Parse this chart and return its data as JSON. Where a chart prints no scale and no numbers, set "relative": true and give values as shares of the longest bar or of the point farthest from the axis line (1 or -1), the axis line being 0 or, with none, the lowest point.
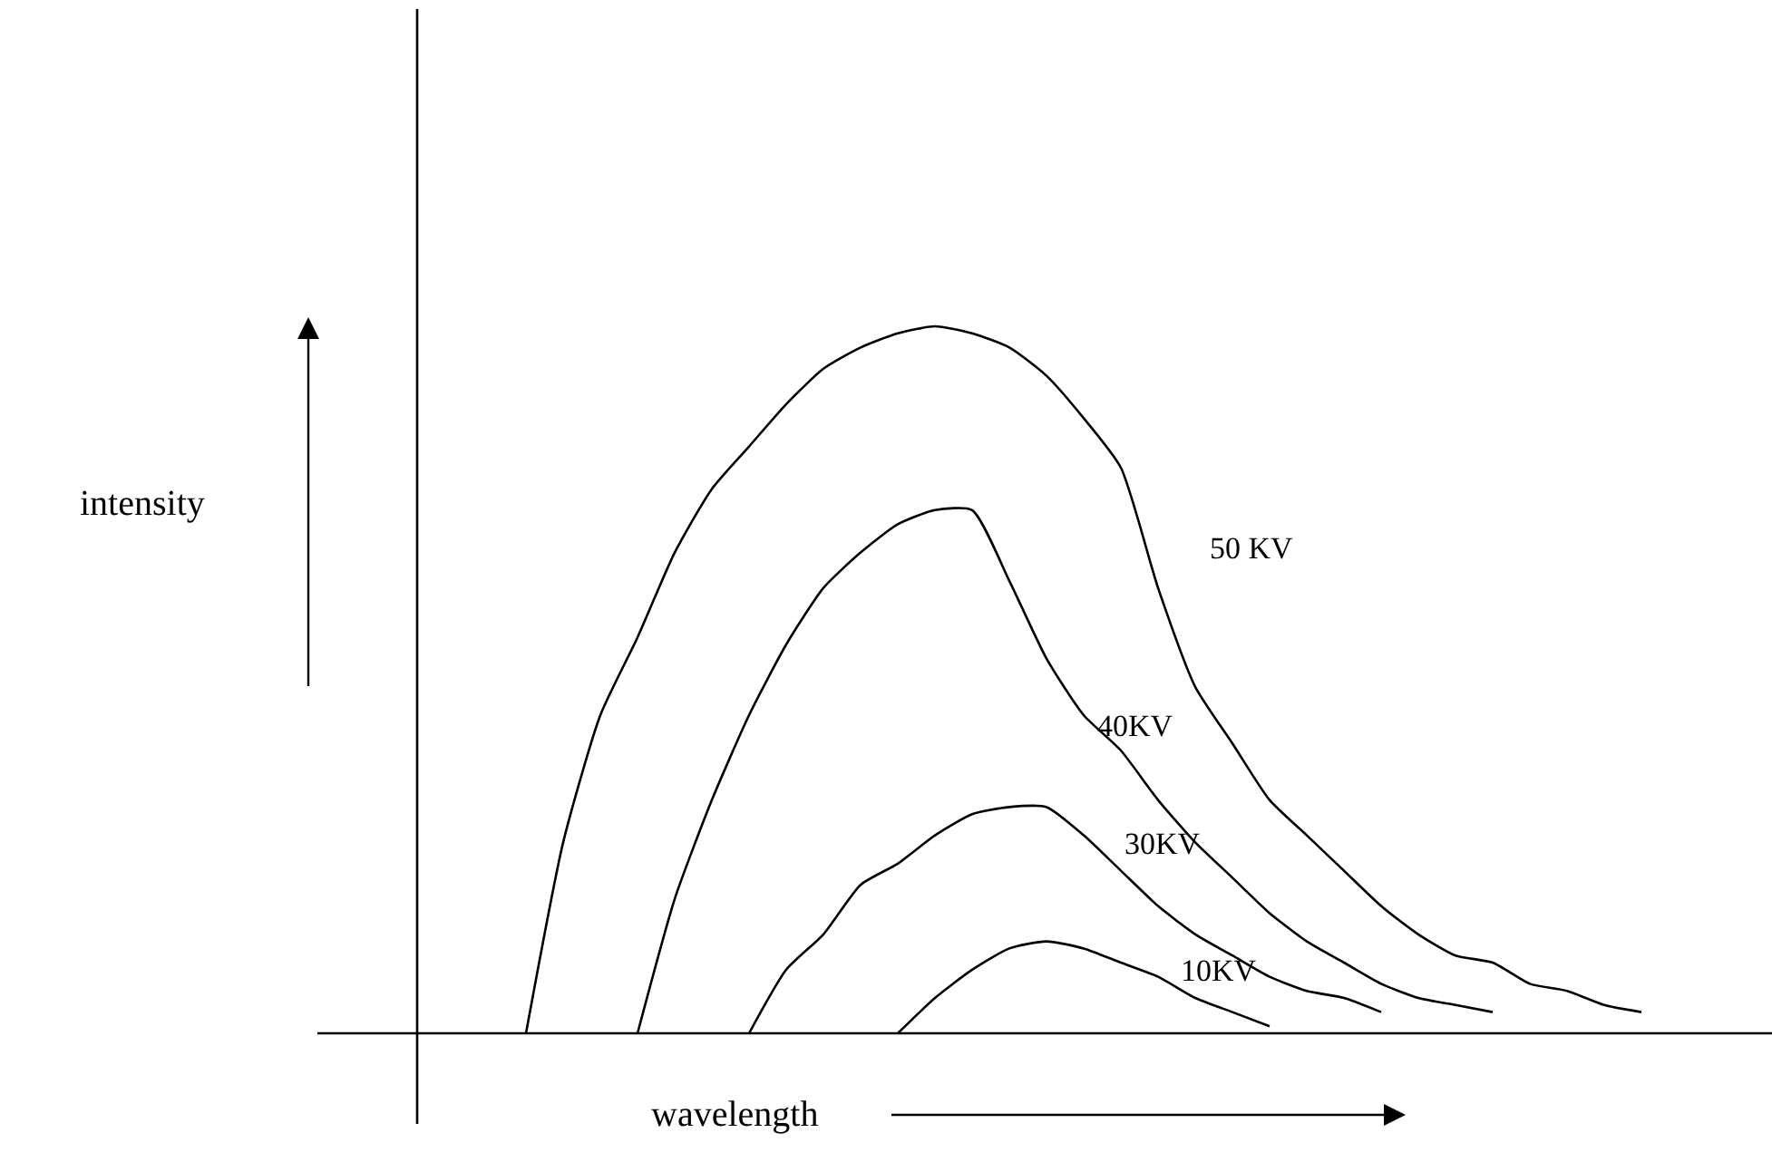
{
  "chart_data": {
    "type": "line",
    "relative": true,
    "xlabel": "wavelength",
    "annotations": [
      "intensity"
    ],
    "legend": false,
    "marker": "none",
    "line_style": "solid",
    "categories": [
      null,
      null,
      null,
      null,
      null,
      null,
      null,
      null,
      null,
      null,
      null,
      null,
      null,
      null,
      null,
      null,
      null,
      null,
      null,
      null,
      null,
      null,
      null,
      null,
      null,
      null,
      null,
      null,
      null,
      null,
      null
    ],
    "series": [
      {
        "name": "50 KV",
        "color": "#000000",
        "values": [
          0,
          0.27,
          0.45,
          0.56,
          0.68,
          0.77,
          0.83,
          0.89,
          0.94,
          0.97,
          0.99,
          1.0,
          0.99,
          0.97,
          0.93,
          0.87,
          0.8,
          0.63,
          0.49,
          0.41,
          0.33,
          0.28,
          0.23,
          0.18,
          0.14,
          0.11,
          0.1,
          0.07,
          0.06,
          0.04,
          0.03
        ]
      },
      {
        "name": "40KV",
        "color": "#000000",
        "values": [
          null,
          null,
          null,
          0,
          0.19,
          0.33,
          0.45,
          0.55,
          0.63,
          0.68,
          0.72,
          0.74,
          0.74,
          0.64,
          0.53,
          0.45,
          0.4,
          0.33,
          0.27,
          0.22,
          0.17,
          0.13,
          0.1,
          0.07,
          0.05,
          0.04,
          0.03,
          null,
          null,
          null,
          null
        ]
      },
      {
        "name": "30KV",
        "color": "#000000",
        "values": [
          null,
          null,
          null,
          null,
          null,
          null,
          0,
          0.09,
          0.14,
          0.21,
          0.24,
          0.28,
          0.31,
          0.32,
          0.32,
          0.28,
          0.23,
          0.18,
          0.14,
          0.11,
          0.08,
          0.06,
          0.05,
          0.03,
          null,
          null,
          null,
          null,
          null,
          null,
          null
        ]
      },
      {
        "name": "10KV",
        "color": "#000000",
        "values": [
          null,
          null,
          null,
          null,
          null,
          null,
          null,
          null,
          null,
          null,
          0,
          0.05,
          0.09,
          0.12,
          0.13,
          0.12,
          0.1,
          0.08,
          0.05,
          0.03,
          0.01,
          null,
          null,
          null,
          null,
          null,
          null,
          null,
          null,
          null,
          null
        ]
      }
    ]
  }
}
